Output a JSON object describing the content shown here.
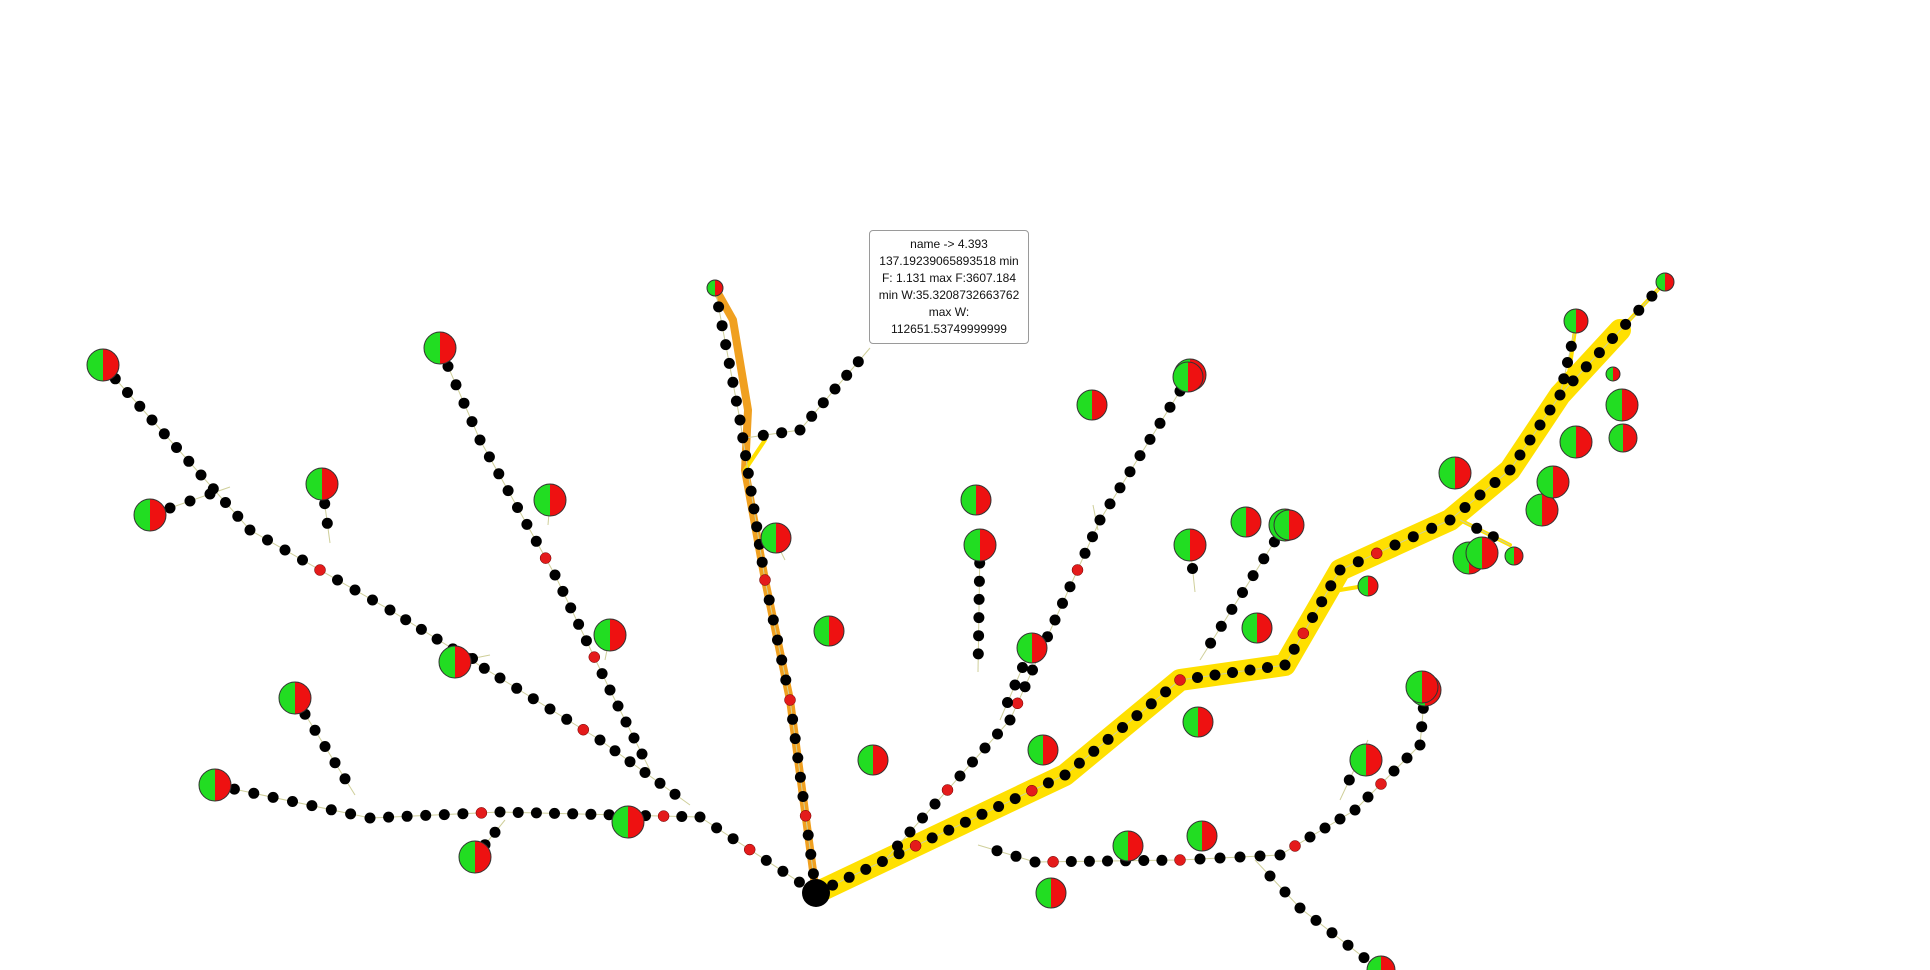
{
  "tooltip": {
    "lines": [
      "name -> 4.393",
      "137.19239065893518 min",
      "F: 1.131 max F:3607.184",
      "min W:35.3208732663762",
      "max W:",
      "112651.53749999999"
    ]
  },
  "colors": {
    "background": "#ffffff",
    "node": "#000000",
    "junction": "#e41b1b",
    "leaf_green": "#22dd22",
    "leaf_red": "#ee1111",
    "path_main": "#ffe000",
    "path_branch": "#f0a020"
  },
  "legend_icons": [
    "pie-node-icon",
    "junction-node-icon",
    "root-node-icon"
  ]
}
